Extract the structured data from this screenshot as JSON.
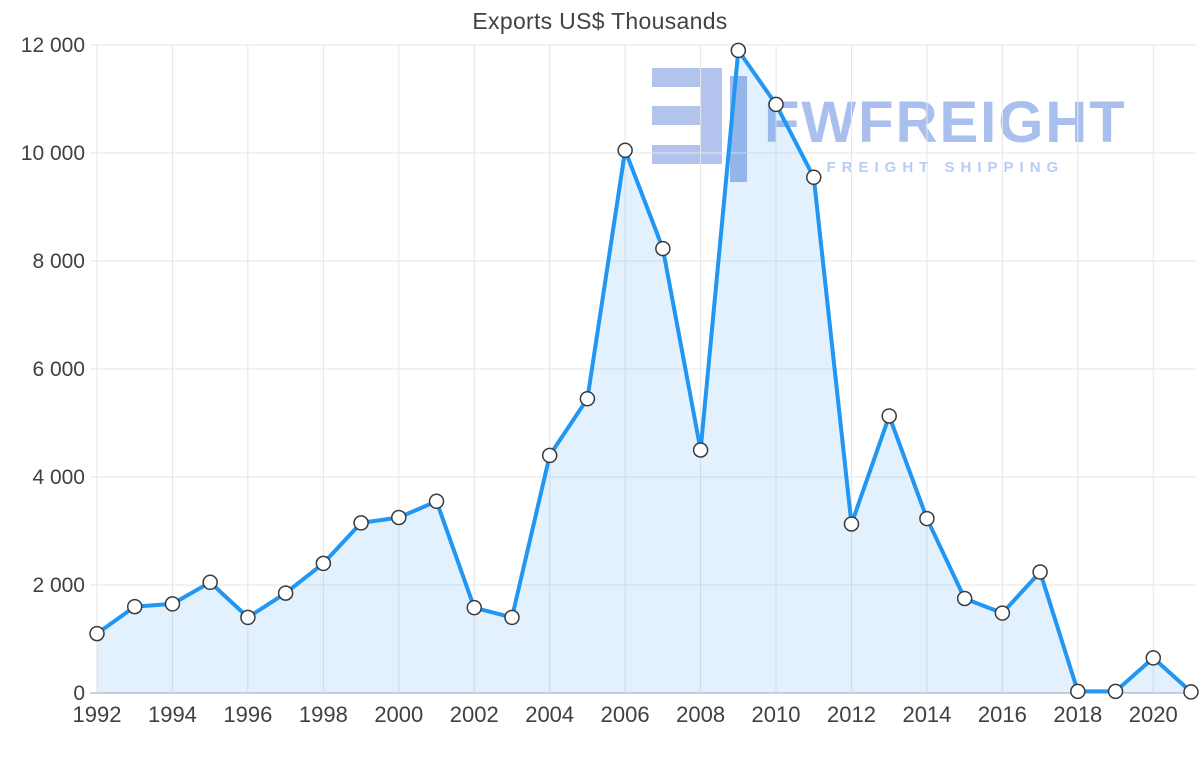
{
  "title": "Exports US$ Thousands",
  "watermark": {
    "brand": "FWFREIGHT",
    "tagline": "FREIGHT SHIPPING",
    "icon_color": "#b2c4ee",
    "icon_bar_color": "#a6baea"
  },
  "chart_data": {
    "type": "area",
    "title": "Exports US$ Thousands",
    "x": [
      1992,
      1993,
      1994,
      1995,
      1996,
      1997,
      1998,
      1999,
      2000,
      2001,
      2002,
      2003,
      2004,
      2005,
      2006,
      2007,
      2008,
      2009,
      2010,
      2011,
      2012,
      2013,
      2014,
      2015,
      2016,
      2017,
      2018,
      2019,
      2020,
      2021
    ],
    "values": [
      1100,
      1600,
      1650,
      2050,
      1400,
      1850,
      2400,
      3150,
      3250,
      3550,
      1580,
      1400,
      4400,
      5450,
      10050,
      8230,
      4500,
      11900,
      10900,
      9550,
      3130,
      5130,
      3230,
      1750,
      1480,
      2240,
      30,
      30,
      650,
      20
    ],
    "xlabel": "",
    "ylabel": "",
    "ylim": [
      0,
      12000
    ],
    "ytick_step": 2000,
    "xtick_step": 2,
    "grid": true,
    "legend": false,
    "ytick_labels": [
      "0",
      "2 000",
      "4 000",
      "6 000",
      "8 000",
      "10 000",
      "12 000"
    ],
    "xtick_labels": [
      "1992",
      "1994",
      "1996",
      "1998",
      "2000",
      "2002",
      "2004",
      "2006",
      "2008",
      "2010",
      "2012",
      "2014",
      "2016",
      "2018",
      "2020"
    ],
    "colors": {
      "line": "#2196f3",
      "area": "rgba(33,150,243,0.13)",
      "marker_fill": "#ffffff",
      "marker_stroke": "#3a3a3a",
      "grid": "#e6e6e6",
      "axis": "#a6a6a6",
      "text": "#404040"
    }
  }
}
